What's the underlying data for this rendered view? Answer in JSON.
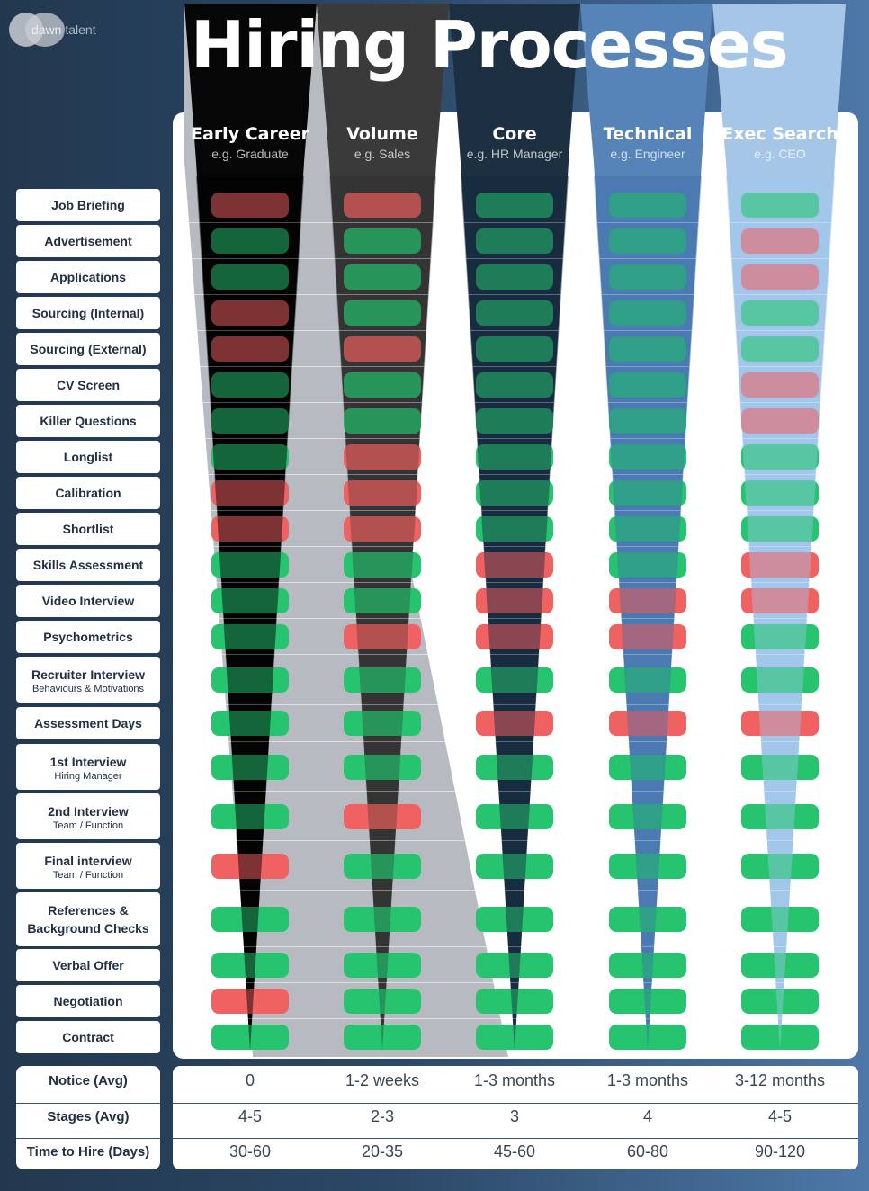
{
  "logo": {
    "word1": "dawn",
    "word2": "talent"
  },
  "title": "Hiring Processes",
  "colors": {
    "green": "#27c46f",
    "red": "#f06262"
  },
  "columns": [
    {
      "name": "Early Career",
      "example": "e.g. Graduate"
    },
    {
      "name": "Volume",
      "example": "e.g. Sales"
    },
    {
      "name": "Core",
      "example": "e.g. HR Manager"
    },
    {
      "name": "Technical",
      "example": "e.g. Engineer"
    },
    {
      "name": "Exec Search",
      "example": "e.g. CEO"
    }
  ],
  "stages": [
    {
      "label": "Job Briefing",
      "sub": "",
      "status": [
        "r",
        "r",
        "g",
        "g",
        "g"
      ]
    },
    {
      "label": "Advertisement",
      "sub": "",
      "status": [
        "g",
        "g",
        "g",
        "g",
        "r"
      ]
    },
    {
      "label": "Applications",
      "sub": "",
      "status": [
        "g",
        "g",
        "g",
        "g",
        "r"
      ]
    },
    {
      "label": "Sourcing (Internal)",
      "sub": "",
      "status": [
        "r",
        "g",
        "g",
        "g",
        "g"
      ]
    },
    {
      "label": "Sourcing (External)",
      "sub": "",
      "status": [
        "r",
        "r",
        "g",
        "g",
        "g"
      ]
    },
    {
      "label": "CV Screen",
      "sub": "",
      "status": [
        "g",
        "g",
        "g",
        "g",
        "r"
      ]
    },
    {
      "label": "Killer Questions",
      "sub": "",
      "status": [
        "g",
        "g",
        "g",
        "g",
        "r"
      ]
    },
    {
      "label": "Longlist",
      "sub": "",
      "status": [
        "g",
        "r",
        "g",
        "g",
        "g"
      ]
    },
    {
      "label": "Calibration",
      "sub": "",
      "status": [
        "r",
        "r",
        "g",
        "g",
        "g"
      ]
    },
    {
      "label": "Shortlist",
      "sub": "",
      "status": [
        "r",
        "r",
        "g",
        "g",
        "g"
      ]
    },
    {
      "label": "Skills Assessment",
      "sub": "",
      "status": [
        "g",
        "g",
        "r",
        "g",
        "r"
      ]
    },
    {
      "label": "Video Interview",
      "sub": "",
      "status": [
        "g",
        "g",
        "r",
        "r",
        "r"
      ]
    },
    {
      "label": "Psychometrics",
      "sub": "",
      "status": [
        "g",
        "r",
        "r",
        "r",
        "g"
      ]
    },
    {
      "label": "Recruiter Interview",
      "sub": "Behaviours & Motivations",
      "status": [
        "g",
        "g",
        "g",
        "g",
        "g"
      ]
    },
    {
      "label": "Assessment Days",
      "sub": "",
      "status": [
        "g",
        "g",
        "r",
        "r",
        "r"
      ]
    },
    {
      "label": "1st Interview",
      "sub": "Hiring Manager",
      "status": [
        "g",
        "g",
        "g",
        "g",
        "g"
      ]
    },
    {
      "label": "2nd Interview",
      "sub": "Team / Function",
      "status": [
        "g",
        "r",
        "g",
        "g",
        "g"
      ]
    },
    {
      "label": "Final interview",
      "sub": "Team / Function",
      "status": [
        "r",
        "g",
        "g",
        "g",
        "g"
      ]
    },
    {
      "label": "References &",
      "sub": "Background Checks",
      "status": [
        "g",
        "g",
        "g",
        "g",
        "g"
      ]
    },
    {
      "label": "Verbal Offer",
      "sub": "",
      "status": [
        "g",
        "g",
        "g",
        "g",
        "g"
      ]
    },
    {
      "label": "Negotiation",
      "sub": "",
      "status": [
        "r",
        "g",
        "g",
        "g",
        "g"
      ]
    },
    {
      "label": "Contract",
      "sub": "",
      "status": [
        "g",
        "g",
        "g",
        "g",
        "g"
      ]
    }
  ],
  "summary": [
    {
      "label": "Notice (Avg)",
      "values": [
        "0",
        "1-2 weeks",
        "1-3 months",
        "1-3 months",
        "3-12 months"
      ]
    },
    {
      "label": "Stages (Avg)",
      "values": [
        "4-5",
        "2-3",
        "3",
        "4",
        "4-5"
      ]
    },
    {
      "label": "Time to Hire (Days)",
      "values": [
        "30-60",
        "20-35",
        "45-60",
        "60-80",
        "90-120"
      ]
    }
  ]
}
